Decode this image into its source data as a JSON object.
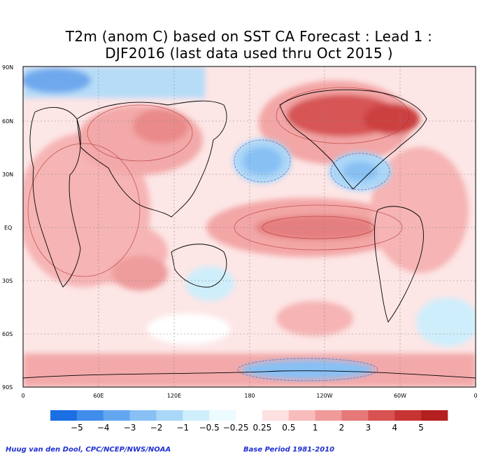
{
  "title_line1": "T2m (anom C) based on SST CA Forecast : Lead 1 :",
  "title_line2": "DJF2016 (last data used thru Oct 2015 )",
  "axes": {
    "lat_labels": [
      "90N",
      "60N",
      "30N",
      "EQ",
      "30S",
      "60S",
      "90S"
    ],
    "lon_labels": [
      "0",
      "60E",
      "120E",
      "180",
      "120W",
      "60W",
      "0"
    ]
  },
  "colorbar": {
    "labels": [
      "−5",
      "−4",
      "−3",
      "−2",
      "−1",
      "−0.5",
      "−0.25",
      "0.25",
      "0.5",
      "1",
      "2",
      "3",
      "4",
      "5"
    ],
    "colors": [
      "#1b6fe3",
      "#3f8ceb",
      "#63a6f0",
      "#88c0f4",
      "#aad7f8",
      "#cfeefb",
      "#ecfbff",
      "#ffffff",
      "#fde0e0",
      "#f8bcbc",
      "#f09a9a",
      "#e57878",
      "#d85252",
      "#c73434",
      "#b42020"
    ]
  },
  "credits": {
    "left": "Huug van den Dool, CPC/NCEP/NWS/NOAA",
    "right": "Base Period 1981-2010"
  }
}
